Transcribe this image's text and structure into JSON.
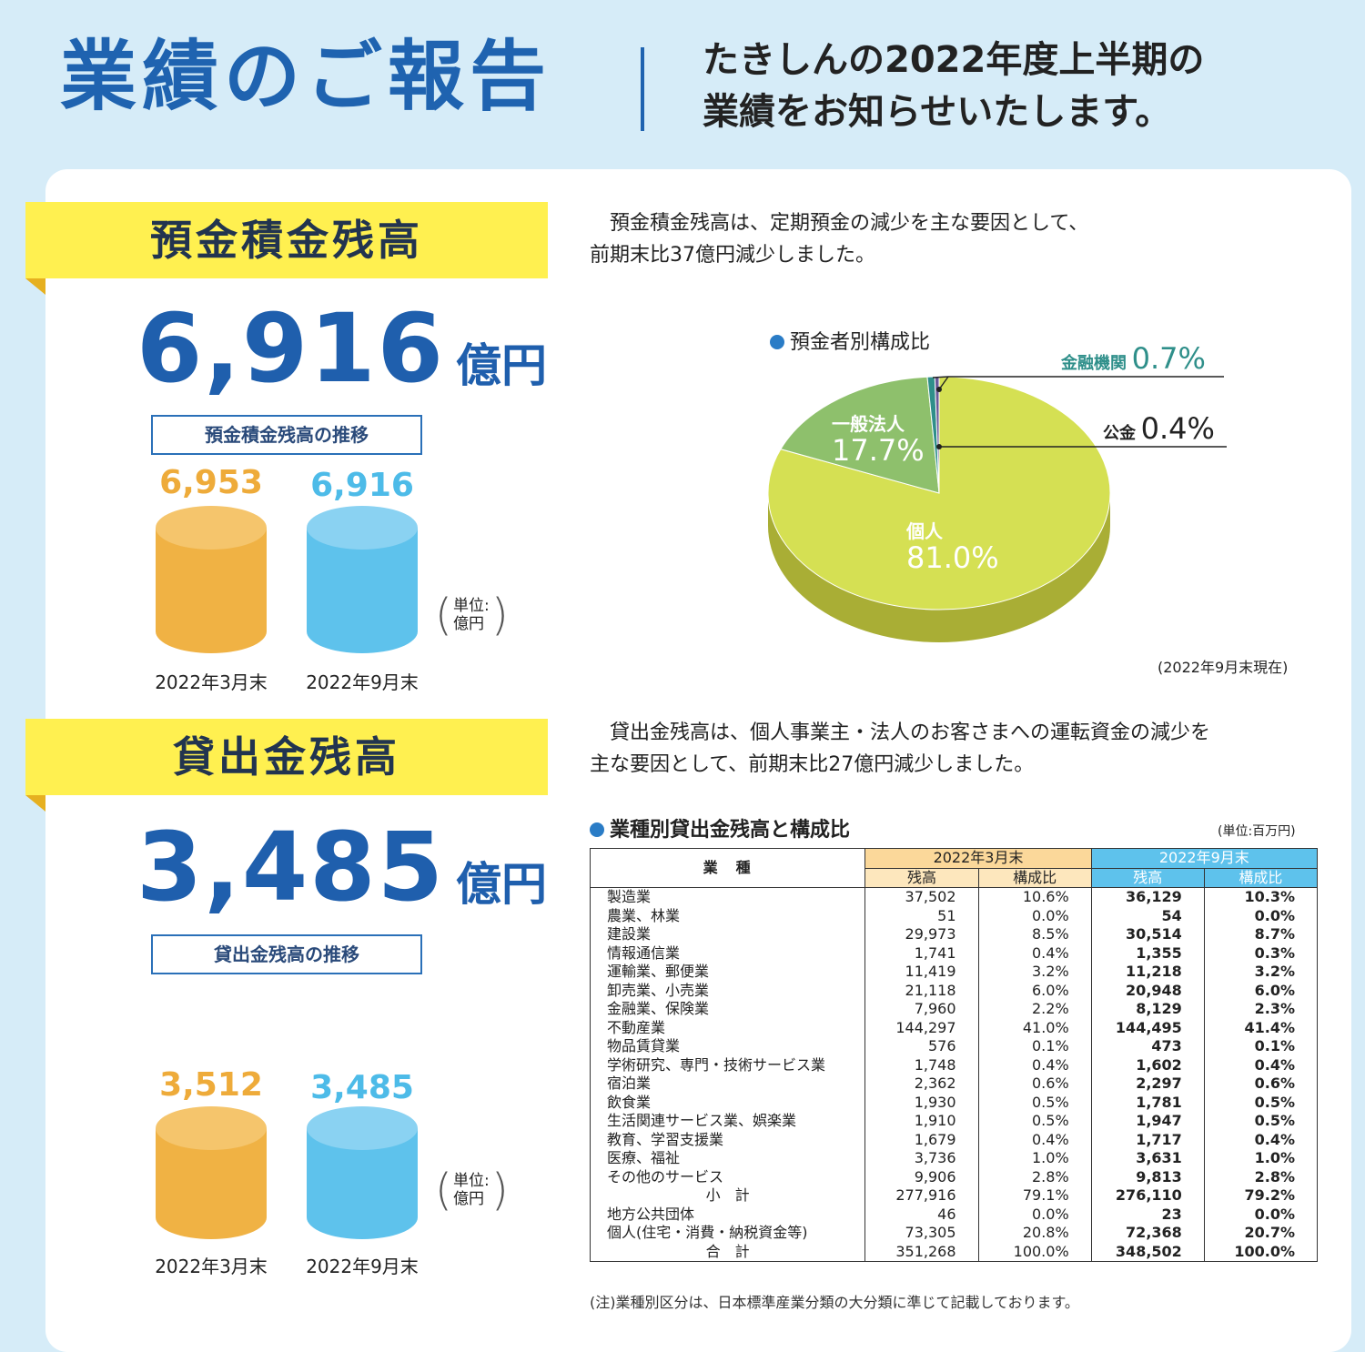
{
  "header": {
    "title": "業績のご報告",
    "subtitle_line1": "たきしんの2022年度上半期の",
    "subtitle_line2": "業績をお知らせいたします。"
  },
  "deposits": {
    "banner": "預金積金残高",
    "amount": "6,916",
    "unit": "億円",
    "trend_label": "預金積金残高の推移",
    "bars": [
      {
        "period": "2022年3月末",
        "value": "6,953",
        "color": "#f0a830"
      },
      {
        "period": "2022年9月末",
        "value": "6,916",
        "color": "#4dbbe8"
      }
    ],
    "unit_note_1": "単位:",
    "unit_note_2": "億円",
    "description_1": "　預金積金残高は、定期預金の減少を主な要因として、",
    "description_2": "前期末比37億円減少しました。",
    "pie_title": "預金者別構成比",
    "pie": [
      {
        "name": "個人",
        "value": 81.0,
        "label": "81.0%",
        "color": "#d5e053"
      },
      {
        "name": "一般法人",
        "value": 17.7,
        "label": "17.7%",
        "color": "#8ec06c"
      },
      {
        "name": "金融機関",
        "value": 0.7,
        "label": "0.7%",
        "color": "#2f8f8a"
      },
      {
        "name": "公金",
        "value": 0.4,
        "label": "0.4%",
        "color": "#6a5a98"
      }
    ],
    "pie_note": "(2022年9月末現在)"
  },
  "loans": {
    "banner": "貸出金残高",
    "amount": "3,485",
    "unit": "億円",
    "trend_label": "貸出金残高の推移",
    "bars": [
      {
        "period": "2022年3月末",
        "value": "3,512",
        "color": "#f0a830"
      },
      {
        "period": "2022年9月末",
        "value": "3,485",
        "color": "#4dbbe8"
      }
    ],
    "unit_note_1": "単位:",
    "unit_note_2": "億円",
    "description_1": "　貸出金残高は、個人事業主・法人のお客さまへの運転資金の減少を",
    "description_2": "主な要因として、前期末比27億円減少しました。",
    "table_title": "業種別貸出金残高と構成比",
    "table_unit": "(単位:百万円)",
    "table_header": {
      "industry": "業　種",
      "period_mar": "2022年3月末",
      "period_sep": "2022年9月末",
      "balance": "残高",
      "ratio": "構成比"
    },
    "rows": [
      {
        "name": "製造業",
        "mar_bal": "37,502",
        "mar_ratio": "10.6%",
        "sep_bal": "36,129",
        "sep_ratio": "10.3%"
      },
      {
        "name": "農業、林業",
        "mar_bal": "51",
        "mar_ratio": "0.0%",
        "sep_bal": "54",
        "sep_ratio": "0.0%"
      },
      {
        "name": "建設業",
        "mar_bal": "29,973",
        "mar_ratio": "8.5%",
        "sep_bal": "30,514",
        "sep_ratio": "8.7%"
      },
      {
        "name": "情報通信業",
        "mar_bal": "1,741",
        "mar_ratio": "0.4%",
        "sep_bal": "1,355",
        "sep_ratio": "0.3%"
      },
      {
        "name": "運輸業、郵便業",
        "mar_bal": "11,419",
        "mar_ratio": "3.2%",
        "sep_bal": "11,218",
        "sep_ratio": "3.2%"
      },
      {
        "name": "卸売業、小売業",
        "mar_bal": "21,118",
        "mar_ratio": "6.0%",
        "sep_bal": "20,948",
        "sep_ratio": "6.0%"
      },
      {
        "name": "金融業、保険業",
        "mar_bal": "7,960",
        "mar_ratio": "2.2%",
        "sep_bal": "8,129",
        "sep_ratio": "2.3%"
      },
      {
        "name": "不動産業",
        "mar_bal": "144,297",
        "mar_ratio": "41.0%",
        "sep_bal": "144,495",
        "sep_ratio": "41.4%"
      },
      {
        "name": "物品賃貸業",
        "mar_bal": "576",
        "mar_ratio": "0.1%",
        "sep_bal": "473",
        "sep_ratio": "0.1%"
      },
      {
        "name": "学術研究、専門・技術サービス業",
        "mar_bal": "1,748",
        "mar_ratio": "0.4%",
        "sep_bal": "1,602",
        "sep_ratio": "0.4%"
      },
      {
        "name": "宿泊業",
        "mar_bal": "2,362",
        "mar_ratio": "0.6%",
        "sep_bal": "2,297",
        "sep_ratio": "0.6%"
      },
      {
        "name": "飲食業",
        "mar_bal": "1,930",
        "mar_ratio": "0.5%",
        "sep_bal": "1,781",
        "sep_ratio": "0.5%"
      },
      {
        "name": "生活関連サービス業、娯楽業",
        "mar_bal": "1,910",
        "mar_ratio": "0.5%",
        "sep_bal": "1,947",
        "sep_ratio": "0.5%"
      },
      {
        "name": "教育、学習支援業",
        "mar_bal": "1,679",
        "mar_ratio": "0.4%",
        "sep_bal": "1,717",
        "sep_ratio": "0.4%"
      },
      {
        "name": "医療、福祉",
        "mar_bal": "3,736",
        "mar_ratio": "1.0%",
        "sep_bal": "3,631",
        "sep_ratio": "1.0%"
      },
      {
        "name": "その他のサービス",
        "mar_bal": "9,906",
        "mar_ratio": "2.8%",
        "sep_bal": "9,813",
        "sep_ratio": "2.8%"
      },
      {
        "name": "小　計",
        "mar_bal": "277,916",
        "mar_ratio": "79.1%",
        "sep_bal": "276,110",
        "sep_ratio": "79.2%",
        "center": true
      },
      {
        "name": "地方公共団体",
        "mar_bal": "46",
        "mar_ratio": "0.0%",
        "sep_bal": "23",
        "sep_ratio": "0.0%"
      },
      {
        "name": "個人(住宅・消費・納税資金等)",
        "mar_bal": "73,305",
        "mar_ratio": "20.8%",
        "sep_bal": "72,368",
        "sep_ratio": "20.7%"
      },
      {
        "name": "合　計",
        "mar_bal": "351,268",
        "mar_ratio": "100.0%",
        "sep_bal": "348,502",
        "sep_ratio": "100.0%",
        "center": true
      }
    ],
    "table_note": "(注)業種別区分は、日本標準産業分類の大分類に準じて記載しております。"
  }
}
